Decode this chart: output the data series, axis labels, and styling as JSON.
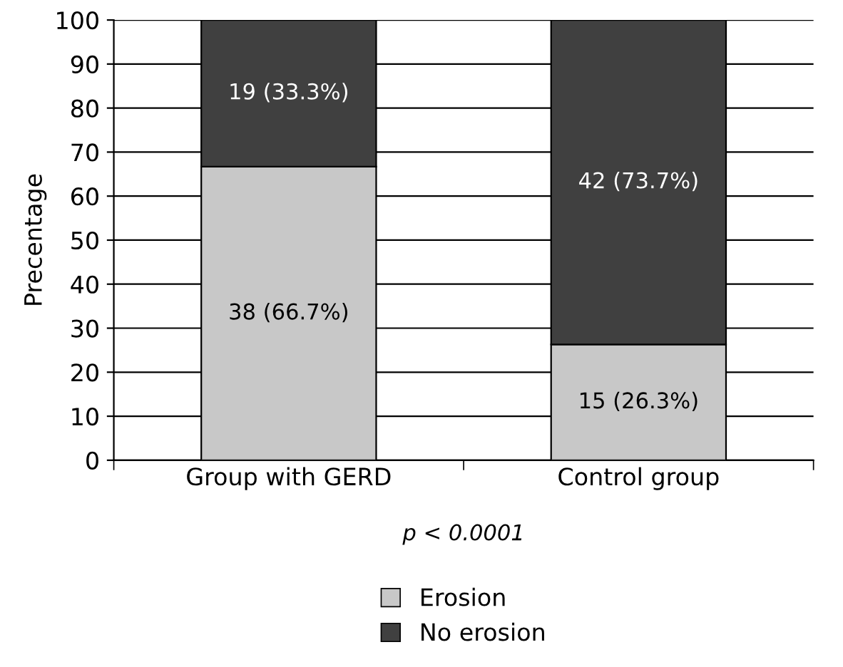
{
  "chart_data": {
    "type": "bar",
    "stacked": true,
    "ylabel": "Precentage",
    "categories": [
      "Group with GERD",
      "Control group"
    ],
    "series": [
      {
        "name": "Erosion",
        "color": "#c8c8c8",
        "values": [
          66.7,
          26.3
        ],
        "value_labels": [
          "38 (66.7%)",
          "15 (26.3%)"
        ]
      },
      {
        "name": "No erosion",
        "color": "#404040",
        "values": [
          33.3,
          73.7
        ],
        "value_labels": [
          "19 (33.3%)",
          "42 (73.7%)"
        ]
      }
    ],
    "ylim": [
      0,
      100
    ],
    "yticks": [
      0,
      10,
      20,
      30,
      40,
      50,
      60,
      70,
      80,
      90,
      100
    ],
    "grid": "y",
    "legend": "bottom",
    "annotations": [
      "p < 0.0001"
    ]
  }
}
